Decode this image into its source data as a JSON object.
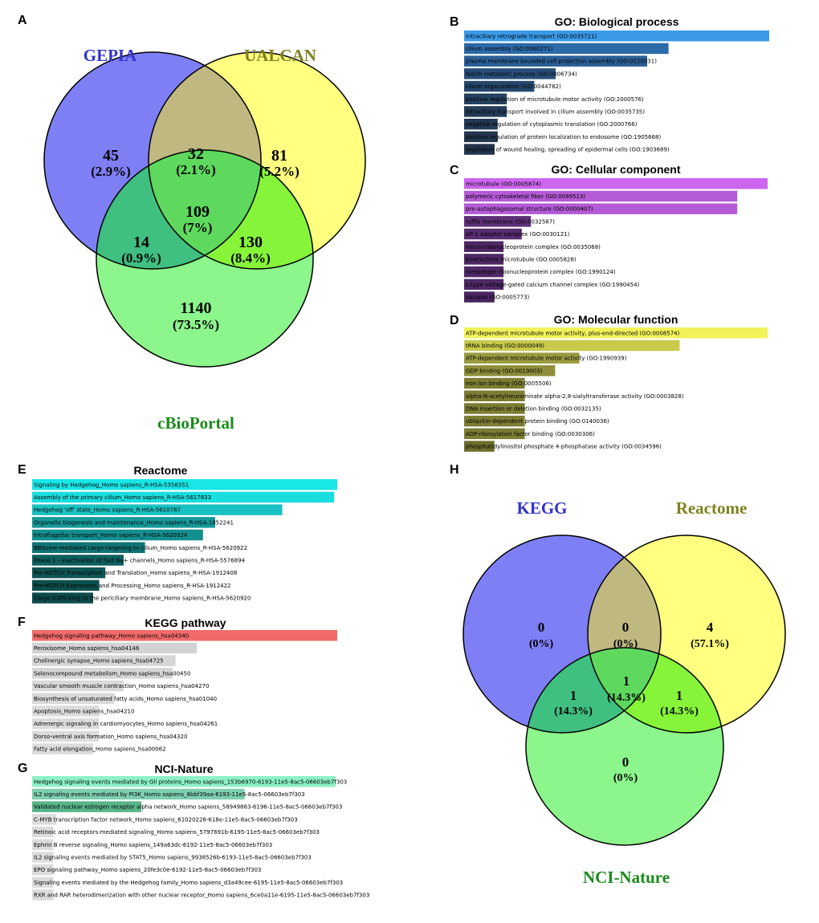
{
  "chart_data": [
    {
      "type": "venn",
      "panel": "A",
      "sets": [
        "GEPIA",
        "UALCAN",
        "cBioPortal"
      ],
      "set_colors": [
        "#3333cc",
        "#808020",
        "#1a8a1a"
      ],
      "regions": [
        {
          "name": "GEPIA only",
          "count": "45",
          "percent": "(2.9%)"
        },
        {
          "name": "GEPIA & UALCAN",
          "count": "32",
          "percent": "(2.1%)"
        },
        {
          "name": "UALCAN only",
          "count": "81",
          "percent": "(5.2%)"
        },
        {
          "name": "all three",
          "count": "109",
          "percent": "(7%)"
        },
        {
          "name": "GEPIA & cBioPortal",
          "count": "14",
          "percent": "(0.9%)"
        },
        {
          "name": "UALCAN & cBioPortal",
          "count": "130",
          "percent": "(8.4%)"
        },
        {
          "name": "cBioPortal only",
          "count": "1140",
          "percent": "(73.5%)"
        }
      ]
    },
    {
      "type": "bar",
      "panel": "B",
      "title": "GO: Biological process",
      "categories": [
        "intraciliary retrograde transport (GO:0035721)",
        "cilium assembly (GO:0060271)",
        "plasma membrane bounded cell projection assembly (GO:0120031)",
        "NADH metabolic process (GO:0006734)",
        "cilium organization (GO:0044782)",
        "positive regulation of microtubule motor activity (GO:2000576)",
        "intraciliary transport involved in cilium assembly (GO:0035735)",
        "negative regulation of cytoplasmic translation (GO:2000766)",
        "positive regulation of protein localization to endosome (GO:1905668)",
        "regulation of wound healing, spreading of epidermal cells (GO:1903689)"
      ],
      "values": [
        1.0,
        0.67,
        0.6,
        0.3,
        0.23,
        0.14,
        0.14,
        0.11,
        0.11,
        0.1
      ],
      "colors": [
        "#3a9ae8",
        "#2c6aa8",
        "#2a5f95",
        "#284f7a",
        "#26476c",
        "#25405f",
        "#243c58",
        "#233853",
        "#23364f",
        "#23354d"
      ]
    },
    {
      "type": "bar",
      "panel": "C",
      "title": "GO: Cellular component",
      "categories": [
        "microtubule (GO:0005874)",
        "polymeric cytoskeletal fiber (GO:0099513)",
        "pre-autophagosomal structure (GO:0000407)",
        "ruffle membrane (GO:0032587)",
        "AP-1 adaptor complex (GO:0030121)",
        "micro-ribonucleoprotein complex (GO:0035068)",
        "kinetochore microtubule (GO:0005828)",
        "messenger ribonucleoprotein complex (GO:1990124)",
        "L-type voltage-gated calcium channel complex (GO:1990454)",
        "vacuole (GO:0005773)"
      ],
      "values": [
        1.0,
        0.9,
        0.9,
        0.22,
        0.19,
        0.13,
        0.13,
        0.13,
        0.13,
        0.1
      ],
      "colors": [
        "#cc66ee",
        "#b45ad6",
        "#b45ad6",
        "#5e3078",
        "#572c70",
        "#4f2866",
        "#4f2866",
        "#4f2866",
        "#4f2866",
        "#4a2660"
      ]
    },
    {
      "type": "bar",
      "panel": "D",
      "title": "GO: Molecular function",
      "categories": [
        "ATP-dependent microtubule motor activity, plus-end-directed (GO:0008574)",
        "tRNA binding (GO:0000049)",
        "ATP-dependent microtubule motor activity (GO:1990939)",
        "GDP binding (GO:0019003)",
        "iron ion binding (GO:0005506)",
        "alpha-N-acetylneuraminate alpha-2,8-sialyltransferase activity (GO:0003828)",
        "DNA insertion or deletion binding (GO:0032135)",
        "ubiquitin-dependent protein binding (GO:0140036)",
        "ADP-ribosylation factor binding (GO:0030306)",
        "phosphatidylinositol phosphate 4-phosphatase activity (GO:0034596)"
      ],
      "values": [
        1.0,
        0.71,
        0.38,
        0.3,
        0.2,
        0.2,
        0.2,
        0.2,
        0.2,
        0.1
      ],
      "colors": [
        "#f2f25a",
        "#c9c94c",
        "#9a9a40",
        "#8e8e3a",
        "#7d7d33",
        "#7d7d33",
        "#7d7d33",
        "#7d7d33",
        "#7d7d33",
        "#6e6e2e"
      ]
    },
    {
      "type": "bar",
      "panel": "E",
      "title": "Reactome",
      "categories": [
        "Signaling by Hedgehog_Homo sapiens_R-HSA-5358351",
        "Assembly of the primary cilium_Homo sapiens_R-HSA-5617833",
        "Hedgehog 'off' state_Homo sapiens_R-HSA-5610787",
        "Organelle biogenesis and maintenance_Homo sapiens_R-HSA-1852241",
        "Intraflagellar transport_Homo sapiens_R-HSA-5620924",
        "BBSome-mediated cargo-targeting to cilium_Homo sapiens_R-HSA-5620922",
        "Phase 1 - inactivation of fast Na+ channels_Homo sapiens_R-HSA-5576894",
        "Pre-NOTCH Transcription and Translation_Homo sapiens_R-HSA-1912408",
        "Pre-NOTCH Expression and Processing_Homo sapiens_R-HSA-1912422",
        "Cargo trafficking to the periciliary membrane_Homo sapiens_R-HSA-5620920"
      ],
      "values": [
        1.0,
        0.99,
        0.82,
        0.6,
        0.56,
        0.37,
        0.3,
        0.24,
        0.22,
        0.2
      ],
      "colors": [
        "#19e6e6",
        "#19dede",
        "#18c2c2",
        "#159a9a",
        "#148f8f",
        "#117474",
        "#0f5f5f",
        "#0e5555",
        "#0d5050",
        "#0c4c4c"
      ]
    },
    {
      "type": "bar",
      "panel": "F",
      "title": "KEGG pathway",
      "categories": [
        "Hedgehog signaling pathway_Homo sapiens_hsa04340",
        "Peroxisome_Homo sapiens_hsa04146",
        "Cholinergic synapse_Homo sapiens_hsa04725",
        "Selenocompound metabolism_Homo sapiens_hsa00450",
        "Vascular smooth muscle contraction_Homo sapiens_hsa04270",
        "Biosynthesis of unsaturated fatty acids_Homo sapiens_hsa01040",
        "Apoptosis_Homo sapiens_hsa04210",
        "Adrenergic signaling in cardiomyocytes_Homo sapiens_hsa04261",
        "Dorso-ventral axis formation_Homo sapiens_hsa04320",
        "Fatty acid elongation_Homo sapiens_hsa00062"
      ],
      "values": [
        1.0,
        0.54,
        0.47,
        0.46,
        0.3,
        0.27,
        0.22,
        0.22,
        0.22,
        0.2
      ],
      "colors": [
        "#f26b6b",
        "#d3d3d3",
        "#d6d6d6",
        "#d6d6d6",
        "#d9d9d9",
        "#d9d9d9",
        "#dcdcdc",
        "#dcdcdc",
        "#dcdcdc",
        "#dcdcdc"
      ]
    },
    {
      "type": "bar",
      "panel": "G",
      "title": "NCI-Nature",
      "categories": [
        "Hedgehog signaling events mediated by Gli proteins_Homo sapiens_153b6970-6193-11e5-8ac5-06603eb7f303",
        "IL2 signaling events mediated by PI3K_Homo sapiens_8bbf39aa-6193-11e5-8ac5-06603eb7f303",
        "Validated nuclear estrogen receptor alpha network_Homo sapiens_58949883-6196-11e5-8ac5-06603eb7f303",
        "C-MYB transcription factor network_Homo sapiens_61020228-618e-11e5-8ac5-06603eb7f303",
        "Retinoic acid receptors-mediated signaling_Homo sapiens_5797691b-6195-11e5-8ac5-06603eb7f303",
        "Ephrin B reverse signaling_Homo sapiens_149a63dc-6192-11e5-8ac5-06603eb7f303",
        "IL2 signaling events mediated by STAT5_Homo sapiens_9938526b-6193-11e5-8ac5-06603eb7f303",
        "EPO signaling pathway_Homo sapiens_20fe3c0e-6192-11e5-8ac5-06603eb7f303",
        "Signaling events mediated by the Hedgehog family_Homo sapiens_d3a49cee-6195-11e5-8ac5-06603eb7f303",
        "RXR and RAR heterodimerization with other nuclear receptor_Homo sapiens_6ce0a11e-6195-11e5-8ac5-06603eb7f303"
      ],
      "values": [
        1.0,
        0.7,
        0.36,
        0.08,
        0.07,
        0.07,
        0.07,
        0.07,
        0.07,
        0.07
      ],
      "colors": [
        "#8cf2c6",
        "#7ecfb0",
        "#58b588",
        "#dcdcdc",
        "#dcdcdc",
        "#dcdcdc",
        "#dcdcdc",
        "#dcdcdc",
        "#dcdcdc",
        "#dcdcdc"
      ]
    },
    {
      "type": "venn",
      "panel": "H",
      "sets": [
        "KEGG",
        "Reactome",
        "NCI-Nature"
      ],
      "set_colors": [
        "#3333cc",
        "#808020",
        "#1a8a1a"
      ],
      "regions": [
        {
          "name": "KEGG only",
          "count": "0",
          "percent": "(0%)"
        },
        {
          "name": "KEGG & Reactome",
          "count": "0",
          "percent": "(0%)"
        },
        {
          "name": "Reactome only",
          "count": "4",
          "percent": "(57.1%)"
        },
        {
          "name": "all three",
          "count": "1",
          "percent": "(14.3%)"
        },
        {
          "name": "KEGG & NCI-Nature",
          "count": "1",
          "percent": "(14.3%)"
        },
        {
          "name": "Reactome & NCI-Nature",
          "count": "1",
          "percent": "(14.3%)"
        },
        {
          "name": "NCI-Nature only",
          "count": "0",
          "percent": "(0%)"
        }
      ]
    }
  ]
}
